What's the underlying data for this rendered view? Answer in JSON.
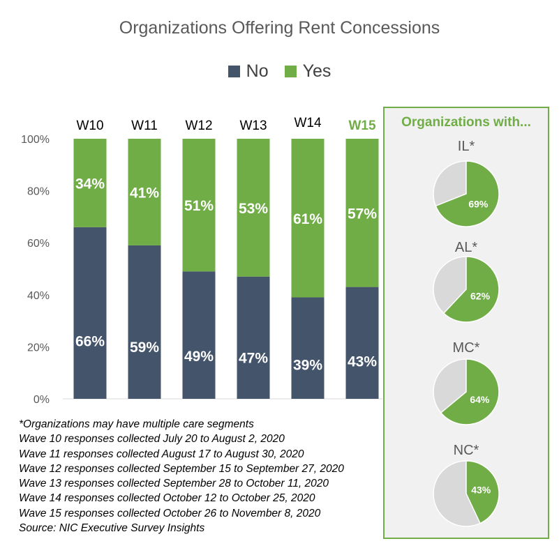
{
  "chart_data": {
    "type": "bar",
    "stacked": true,
    "title": "Organizations Offering Rent Concessions",
    "categories": [
      "W10",
      "W11",
      "W12",
      "W13",
      "W14",
      "W15"
    ],
    "highlight_category": "W15",
    "series": [
      {
        "name": "No",
        "color": "#44546a",
        "values": [
          66,
          59,
          49,
          47,
          39,
          43
        ],
        "labels": [
          "66%",
          "59%",
          "49%",
          "47%",
          "39%",
          "43%"
        ]
      },
      {
        "name": "Yes",
        "color": "#70ad47",
        "values": [
          34,
          41,
          51,
          53,
          61,
          57
        ],
        "labels": [
          "34%",
          "41%",
          "51%",
          "53%",
          "61%",
          "57%"
        ]
      }
    ],
    "y_ticks": [
      "0%",
      "20%",
      "40%",
      "60%",
      "80%",
      "100%"
    ],
    "ylim": [
      0,
      100
    ],
    "legend_position": "top",
    "grid": false
  },
  "panel": {
    "title": "Organizations with...",
    "border_color": "#70ad47",
    "pies": [
      {
        "label": "IL*",
        "value": 69,
        "value_label": "69%"
      },
      {
        "label": "AL*",
        "value": 62,
        "value_label": "62%"
      },
      {
        "label": "MC*",
        "value": 64,
        "value_label": "64%"
      },
      {
        "label": "NC*",
        "value": 43,
        "value_label": "43%"
      }
    ],
    "pie_color": "#70ad47",
    "pie_rest_color": "#d9d9d9"
  },
  "footnotes": [
    "*Organizations may have multiple care segments",
    "Wave 10 responses collected July 20 to August 2, 2020",
    "Wave 11 responses collected August 17 to August 30, 2020",
    "Wave 12 responses collected September 15 to September 27, 2020",
    "Wave 13 responses collected September 28 to October 11, 2020",
    "Wave 14 responses collected October 12 to October 25, 2020",
    "Wave 15 responses collected October 26 to November 8, 2020",
    "Source: NIC Executive Survey Insights"
  ]
}
